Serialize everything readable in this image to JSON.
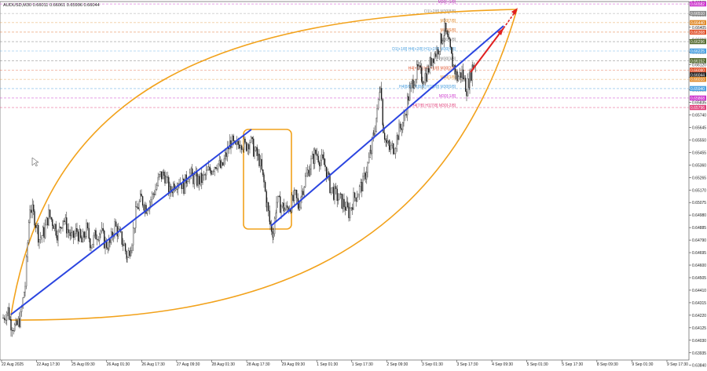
{
  "chart_data": {
    "type": "candlestick",
    "symbol_header": "AUDUSD,M30  0.66011 0.66061 0.65996 0.66044",
    "ylim": [
      0.6388,
      0.666
    ],
    "y_ticks": [
      "0.66595",
      "0.66500",
      "0.66405",
      "0.66310",
      "0.66215",
      "0.66120",
      "0.66025",
      "0.65930",
      "0.65835",
      "0.65740",
      "0.65645",
      "0.65550",
      "0.65455",
      "0.65360",
      "0.65265",
      "0.65170",
      "0.65075",
      "0.64980",
      "0.64885",
      "0.64790",
      "0.64695",
      "0.64600",
      "0.64505",
      "0.64410",
      "0.64315",
      "0.64220",
      "0.64125",
      "0.64030",
      "0.63935",
      "0.63840"
    ],
    "x_ticks": [
      "22 Aug 2025",
      "22 Aug 17:30",
      "25 Aug 09:30",
      "26 Aug 01:30",
      "26 Aug 17:30",
      "27 Aug 09:30",
      "28 Aug 01:30",
      "28 Aug 17:30",
      "29 Aug 09:30",
      "1 Sep 01:30",
      "1 Sep 17:30",
      "2 Sep 09:30",
      "3 Sep 01:30",
      "3 Sep 17:30",
      "4 Sep 09:30",
      "5 Sep 01:30",
      "5 Sep 17:30",
      "8 Sep 09:30",
      "9 Sep 01:30",
      "9 Sep 17:30"
    ],
    "price_path": [
      [
        0,
        0.642
      ],
      [
        6,
        0.6426
      ],
      [
        10,
        0.6416
      ],
      [
        16,
        0.6412
      ],
      [
        22,
        0.642
      ],
      [
        28,
        0.6445
      ],
      [
        34,
        0.6505
      ],
      [
        40,
        0.6496
      ],
      [
        46,
        0.648
      ],
      [
        52,
        0.6485
      ],
      [
        58,
        0.6498
      ],
      [
        64,
        0.6492
      ],
      [
        70,
        0.6483
      ],
      [
        76,
        0.6496
      ],
      [
        82,
        0.6487
      ],
      [
        88,
        0.648
      ],
      [
        94,
        0.6486
      ],
      [
        100,
        0.6477
      ],
      [
        106,
        0.6487
      ],
      [
        112,
        0.6476
      ],
      [
        118,
        0.6483
      ],
      [
        124,
        0.6486
      ],
      [
        130,
        0.6476
      ],
      [
        136,
        0.6476
      ],
      [
        142,
        0.649
      ],
      [
        148,
        0.6483
      ],
      [
        154,
        0.6475
      ],
      [
        158,
        0.6465
      ],
      [
        164,
        0.648
      ],
      [
        170,
        0.6503
      ],
      [
        176,
        0.651
      ],
      [
        182,
        0.6504
      ],
      [
        188,
        0.651
      ],
      [
        194,
        0.6518
      ],
      [
        200,
        0.6528
      ],
      [
        206,
        0.6528
      ],
      [
        212,
        0.6515
      ],
      [
        218,
        0.6522
      ],
      [
        224,
        0.6525
      ],
      [
        230,
        0.652
      ],
      [
        236,
        0.653
      ],
      [
        242,
        0.6526
      ],
      [
        248,
        0.6524
      ],
      [
        254,
        0.6525
      ],
      [
        260,
        0.653
      ],
      [
        266,
        0.6534
      ],
      [
        272,
        0.6538
      ],
      [
        278,
        0.6533
      ],
      [
        284,
        0.6544
      ],
      [
        290,
        0.6554
      ],
      [
        296,
        0.6548
      ],
      [
        302,
        0.6555
      ],
      [
        308,
        0.655
      ],
      [
        314,
        0.6555
      ],
      [
        320,
        0.6546
      ],
      [
        326,
        0.654
      ],
      [
        332,
        0.6522
      ],
      [
        336,
        0.6505
      ],
      [
        340,
        0.649
      ],
      [
        344,
        0.6485
      ],
      [
        348,
        0.6508
      ],
      [
        354,
        0.6505
      ],
      [
        360,
        0.6502
      ],
      [
        366,
        0.6506
      ],
      [
        372,
        0.6512
      ],
      [
        376,
        0.6504
      ],
      [
        380,
        0.6516
      ],
      [
        386,
        0.6528
      ],
      [
        392,
        0.6538
      ],
      [
        398,
        0.6545
      ],
      [
        404,
        0.654
      ],
      [
        410,
        0.6535
      ],
      [
        416,
        0.652
      ],
      [
        422,
        0.6514
      ],
      [
        428,
        0.651
      ],
      [
        434,
        0.6506
      ],
      [
        440,
        0.65
      ],
      [
        446,
        0.651
      ],
      [
        452,
        0.6516
      ],
      [
        458,
        0.6522
      ],
      [
        464,
        0.6536
      ],
      [
        468,
        0.6546
      ],
      [
        472,
        0.656
      ],
      [
        476,
        0.6575
      ],
      [
        480,
        0.66
      ],
      [
        484,
        0.6564
      ],
      [
        488,
        0.6552
      ],
      [
        492,
        0.6548
      ],
      [
        498,
        0.655
      ],
      [
        504,
        0.6562
      ],
      [
        510,
        0.657
      ],
      [
        516,
        0.6588
      ],
      [
        522,
        0.66
      ],
      [
        528,
        0.6608
      ],
      [
        534,
        0.6602
      ],
      [
        540,
        0.6606
      ],
      [
        546,
        0.6618
      ],
      [
        552,
        0.6622
      ],
      [
        558,
        0.6632
      ],
      [
        562,
        0.6638
      ],
      [
        566,
        0.663
      ],
      [
        572,
        0.6614
      ],
      [
        578,
        0.6602
      ],
      [
        584,
        0.6606
      ],
      [
        590,
        0.6594
      ],
      [
        594,
        0.6602
      ],
      [
        598,
        0.6612
      ],
      [
        602,
        0.6614
      ]
    ],
    "annotations": {
      "trend_lines": "blue uptrend lines",
      "forecast": "red arrow and dashed extension",
      "shapes": "orange lens-shaped cycle boundary and consolidation rectangle"
    },
    "levels": [
      {
        "label": "M30[+1/8]",
        "price": 0.66582,
        "color": "#cc33cc"
      },
      {
        "label": "D1[+2/8] M30[8/8]",
        "price": 0.6651,
        "color": "#8a8a8a"
      },
      {
        "label": "M30[7/8]",
        "price": 0.6644,
        "color": "#e08a2a"
      },
      {
        "label": "M30[6/8]",
        "price": 0.66368,
        "color": "#e0702a"
      },
      {
        "label": "M30[5/8]",
        "price": 0.66296,
        "color": "#777777"
      },
      {
        "label": "D1[+1/8] H4[+2/8] H1[+2/8] M30[4/8]",
        "price": 0.66225,
        "color": "#4aa0e0"
      },
      {
        "label": "M30[3/8]",
        "price": 0.66152,
        "color": "#777777"
      },
      {
        "label": "H4[+1/8] H1[+1/8] M30[2/8]",
        "price": 0.6608,
        "color": "#e0502a"
      },
      {
        "label": "M30[1/8]",
        "price": 0.6601,
        "color": "#e08a2a"
      },
      {
        "label": "H4[8/8] D1[8/8] H1[8/8] M30[0/8]",
        "price": 0.6594,
        "color": "#4aa0e0"
      },
      {
        "label": "M30[-1/8]",
        "price": 0.65868,
        "color": "#cc33cc"
      },
      {
        "label": "H4[7/8] H1[7/8] M30[-2/8]",
        "price": 0.65796,
        "color": "#e0407a"
      }
    ],
    "price_badges": [
      {
        "text": "0.66582",
        "color": "#cc33cc"
      },
      {
        "text": "0.66510",
        "color": "#8a8a8a"
      },
      {
        "text": "0.66440",
        "color": "#e08a2a"
      },
      {
        "text": "0.66368",
        "color": "#e0502a"
      },
      {
        "text": "0.66296",
        "color": "#556b2f"
      },
      {
        "text": "0.66225",
        "color": "#4aa0e0"
      },
      {
        "text": "0.66152",
        "color": "#556b2f"
      },
      {
        "text": "0.66080",
        "color": "#e0502a"
      },
      {
        "text": "0.66044",
        "color": "#222222"
      },
      {
        "text": "0.66010",
        "color": "#e08a2a"
      },
      {
        "text": "0.65940",
        "color": "#4aa0e0"
      },
      {
        "text": "0.65868",
        "color": "#cc33cc"
      },
      {
        "text": "0.65796",
        "color": "#e0407a"
      }
    ]
  }
}
